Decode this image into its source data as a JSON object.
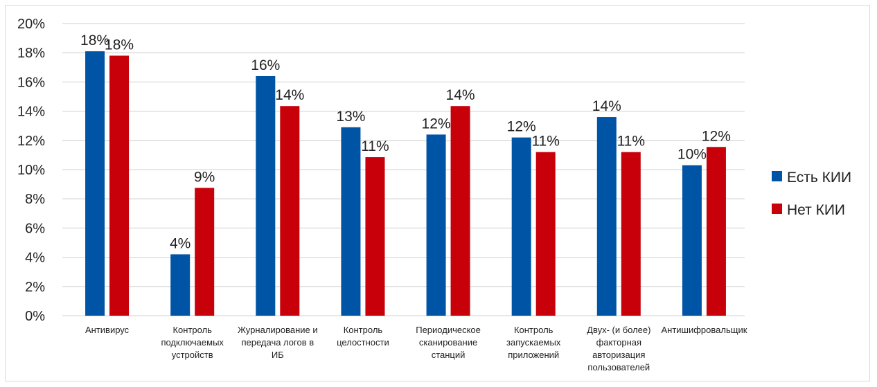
{
  "chart_data": {
    "type": "bar",
    "categories": [
      [
        "Антивирус"
      ],
      [
        "Контроль",
        "подключаемых",
        "устройств"
      ],
      [
        "Журналирование и",
        "передача логов в",
        "ИБ"
      ],
      [
        "Контроль",
        "целостности"
      ],
      [
        "Периодическое",
        "сканирование",
        "станций"
      ],
      [
        "Контроль",
        "запускаемых",
        "приложений"
      ],
      [
        "Двух- (и более)",
        "факторная",
        "авторизация",
        "пользователей"
      ],
      [
        "Антишифровальщик"
      ]
    ],
    "series": [
      {
        "name": "Есть КИИ",
        "color": "#0054A6",
        "values": [
          18.1,
          4.2,
          16.4,
          12.9,
          12.4,
          12.2,
          13.6,
          10.3
        ],
        "labels": [
          "18%",
          "4%",
          "16%",
          "13%",
          "12%",
          "12%",
          "14%",
          "10%"
        ]
      },
      {
        "name": "Нет КИИ",
        "color": "#C8000A",
        "values": [
          17.8,
          8.75,
          14.35,
          10.85,
          14.35,
          11.2,
          11.2,
          11.55
        ],
        "labels": [
          "18%",
          "9%",
          "14%",
          "11%",
          "14%",
          "11%",
          "11%",
          "12%"
        ]
      }
    ],
    "ylim": [
      0,
      20
    ],
    "yticks": [
      "0%",
      "2%",
      "4%",
      "6%",
      "8%",
      "10%",
      "12%",
      "14%",
      "16%",
      "18%",
      "20%"
    ],
    "grid": true,
    "legend_position": "right"
  }
}
